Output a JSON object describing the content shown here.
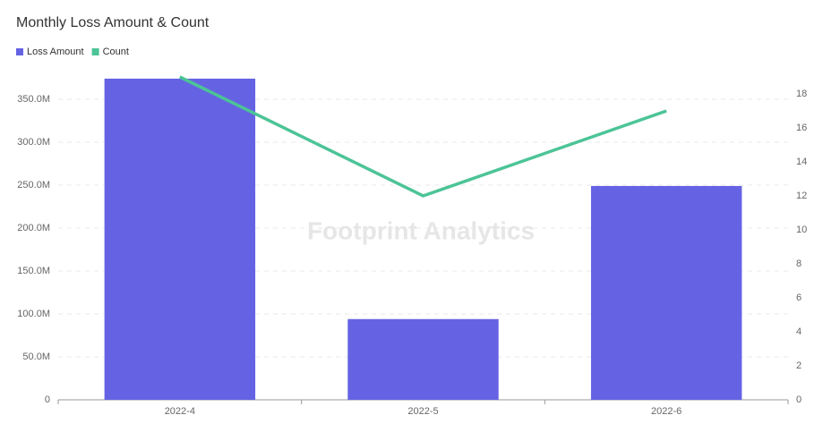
{
  "chart_data": {
    "type": "bar_line",
    "title": "Monthly Loss Amount & Count",
    "watermark": "Footprint Analytics",
    "categories": [
      "2022-4",
      "2022-5",
      "2022-6"
    ],
    "series": [
      {
        "name": "Loss Amount",
        "type": "bar",
        "color": "#6563e3",
        "values": [
          374000000,
          94000000,
          249000000
        ]
      },
      {
        "name": "Count",
        "type": "line",
        "axis": "y2",
        "color": "#4cc497",
        "values": [
          19,
          12,
          17
        ]
      }
    ],
    "ylim": [
      0,
      376000000
    ],
    "yticks": [
      {
        "value": 0,
        "label": "0"
      },
      {
        "value": 50000000,
        "label": "50.0M"
      },
      {
        "value": 100000000,
        "label": "100.0M"
      },
      {
        "value": 150000000,
        "label": "150.0M"
      },
      {
        "value": 200000000,
        "label": "200.0M"
      },
      {
        "value": 250000000,
        "label": "250.0M"
      },
      {
        "value": 300000000,
        "label": "300.0M"
      },
      {
        "value": 350000000,
        "label": "350.0M"
      }
    ],
    "y2lim": [
      0,
      19
    ],
    "y2ticks": [
      0,
      2,
      4,
      6,
      8,
      10,
      12,
      14,
      16,
      18
    ],
    "grid": true,
    "legend": "top-left"
  }
}
